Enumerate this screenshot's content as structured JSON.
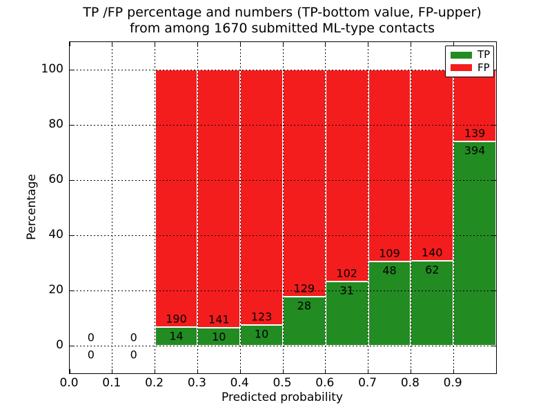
{
  "title": {
    "line1": "TP /FP percentage and numbers (TP-bottom value, FP-upper)",
    "line2": "from among 1670 submitted ML-type contacts"
  },
  "axes": {
    "xlabel": "Predicted probability",
    "ylabel": "Percentage"
  },
  "legend": {
    "position": "upper right",
    "entries": [
      {
        "label": "TP",
        "color": "#228b22"
      },
      {
        "label": "FP",
        "color": "#f41d1d"
      }
    ]
  },
  "chart_data": {
    "type": "bar",
    "stacked": true,
    "normalized": "each bin scaled to 100%, numeric count labels shown (TP bottom, FP upper)",
    "title": "TP /FP percentage and numbers (TP-bottom value, FP-upper) from among 1670 submitted ML-type contacts",
    "xlabel": "Predicted probability",
    "ylabel": "Percentage",
    "xlim": [
      0.0,
      1.0
    ],
    "ylim": [
      -10,
      110
    ],
    "bin_width": 0.1,
    "xticks": [
      0.0,
      0.1,
      0.2,
      0.3,
      0.4,
      0.5,
      0.6,
      0.7,
      0.8,
      0.9
    ],
    "yticks": [
      0,
      20,
      40,
      60,
      80,
      100
    ],
    "grid": "dotted black, drawn above bars",
    "legend_position": "upper right",
    "total_contacts": 1670,
    "categories": [
      "0.0-0.1",
      "0.1-0.2",
      "0.2-0.3",
      "0.3-0.4",
      "0.4-0.5",
      "0.5-0.6",
      "0.6-0.7",
      "0.7-0.8",
      "0.8-0.9",
      "0.9-1.0"
    ],
    "series": [
      {
        "name": "TP",
        "color": "#228b22",
        "counts": [
          0,
          0,
          14,
          10,
          10,
          28,
          31,
          48,
          62,
          394
        ]
      },
      {
        "name": "FP",
        "color": "#f41d1d",
        "counts": [
          0,
          0,
          190,
          141,
          123,
          129,
          102,
          109,
          140,
          139
        ]
      }
    ]
  }
}
